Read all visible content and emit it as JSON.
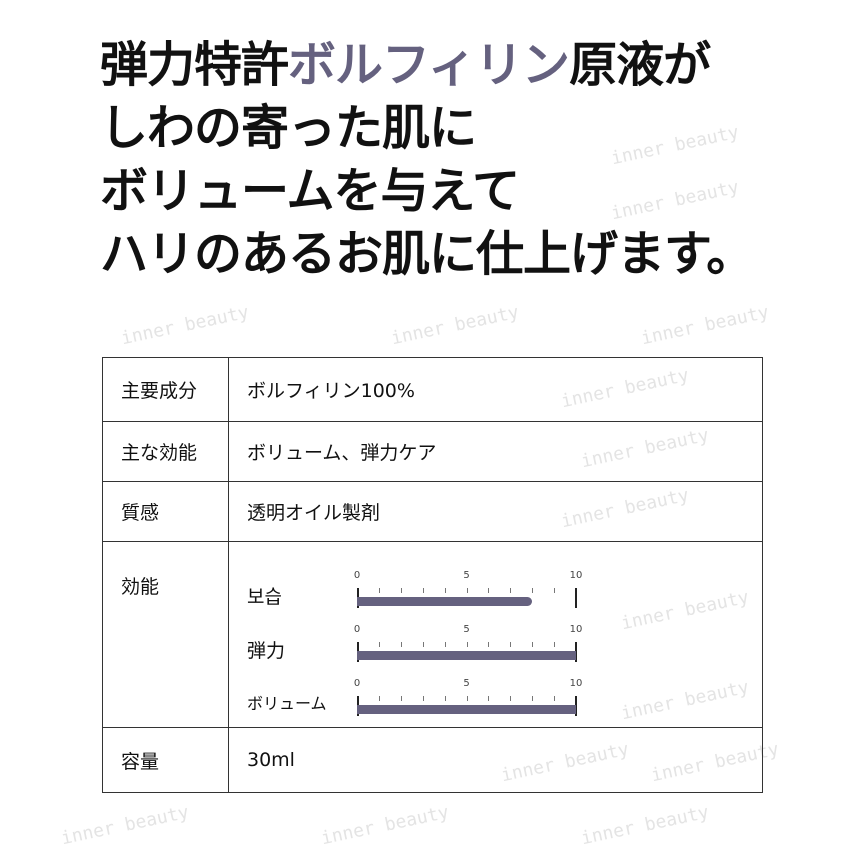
{
  "watermark": "inner beauty",
  "headline": {
    "line1_pre": "弾力特許",
    "line1_hl": "ボルフィリン",
    "line1_post": "原液が",
    "line2": "しわの寄った肌に",
    "line3": "ボリュームを与えて",
    "line4": "ハリのあるお肌に仕上げます。",
    "highlight_color": "#65617f"
  },
  "spec": [
    {
      "label": "主要成分",
      "value": "ボルフィリン100%"
    },
    {
      "label": "主な効能",
      "value": "ボリューム、弾力ケア"
    },
    {
      "label": "質感",
      "value": "透明オイル製剤"
    },
    {
      "label": "効能"
    },
    {
      "label": "容量",
      "value": "30ml"
    }
  ],
  "efficacy": {
    "scale": {
      "min": 0,
      "max": 10,
      "ticks": [
        "0",
        "5",
        "10"
      ]
    },
    "items": [
      {
        "name": "보습",
        "value": 8
      },
      {
        "name": "弾力",
        "value": 10
      },
      {
        "name": "ボリューム",
        "value": 10
      }
    ],
    "bar_color": "#65617f"
  }
}
